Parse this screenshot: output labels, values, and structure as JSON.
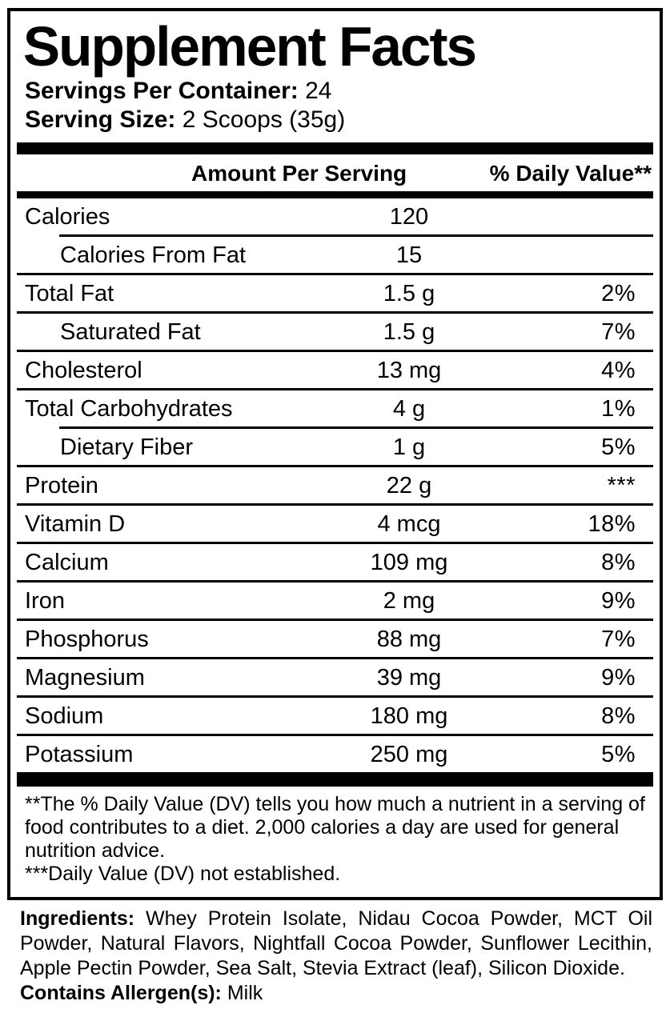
{
  "title": "Supplement Facts",
  "servings_per_container": {
    "label": "Servings Per Container:",
    "value": "24"
  },
  "serving_size": {
    "label": "Serving Size:",
    "value": "2 Scoops (35g)"
  },
  "table": {
    "amount_header": "Amount Per Serving",
    "dv_header": "% Daily Value**",
    "rows": [
      {
        "name": "Calories",
        "amount": "120",
        "dv": "",
        "indent": false,
        "sep": "none"
      },
      {
        "name": "Calories From Fat",
        "amount": "15",
        "dv": "",
        "indent": true,
        "sep": "indent"
      },
      {
        "name": "Total Fat",
        "amount": "1.5 g",
        "dv": "2%",
        "indent": false,
        "sep": "full"
      },
      {
        "name": "Saturated Fat",
        "amount": "1.5 g",
        "dv": "7%",
        "indent": true,
        "sep": "full"
      },
      {
        "name": "Cholesterol",
        "amount": "13 mg",
        "dv": "4%",
        "indent": false,
        "sep": "full"
      },
      {
        "name": "Total Carbohydrates",
        "amount": "4 g",
        "dv": "1%",
        "indent": false,
        "sep": "full"
      },
      {
        "name": "Dietary Fiber",
        "amount": "1 g",
        "dv": "5%",
        "indent": true,
        "sep": "indent"
      },
      {
        "name": "Protein",
        "amount": "22 g",
        "dv": "***",
        "indent": false,
        "sep": "full"
      },
      {
        "name": "Vitamin D",
        "amount": "4 mcg",
        "dv": "18%",
        "indent": false,
        "sep": "full"
      },
      {
        "name": "Calcium",
        "amount": "109 mg",
        "dv": "8%",
        "indent": false,
        "sep": "full"
      },
      {
        "name": "Iron",
        "amount": "2 mg",
        "dv": "9%",
        "indent": false,
        "sep": "full"
      },
      {
        "name": "Phosphorus",
        "amount": "88 mg",
        "dv": "7%",
        "indent": false,
        "sep": "full"
      },
      {
        "name": "Magnesium",
        "amount": "39 mg",
        "dv": "9%",
        "indent": false,
        "sep": "full"
      },
      {
        "name": "Sodium",
        "amount": "180 mg",
        "dv": "8%",
        "indent": false,
        "sep": "full"
      },
      {
        "name": "Potassium",
        "amount": "250 mg",
        "dv": "5%",
        "indent": false,
        "sep": "full"
      }
    ]
  },
  "footnotes": {
    "dv_note": "**The % Daily Value (DV) tells you how much a nutrient in a serving of food contributes to a diet. 2,000 calories a day are used for general nutrition advice.",
    "not_established": "***Daily Value (DV) not established."
  },
  "ingredients": {
    "label": "Ingredients:",
    "text": "Whey Protein Isolate, Nidau Cocoa Powder, MCT Oil Powder, Natural Flavors, Nightfall Cocoa Powder, Sunflower Lecithin, Apple Pectin Powder, Sea Salt, Stevia Extract (leaf), Silicon Dioxide."
  },
  "allergen": {
    "label": "Contains Allergen(s):",
    "value": "Milk"
  },
  "colors": {
    "text": "#000000",
    "background": "#ffffff",
    "rule": "#000000"
  }
}
